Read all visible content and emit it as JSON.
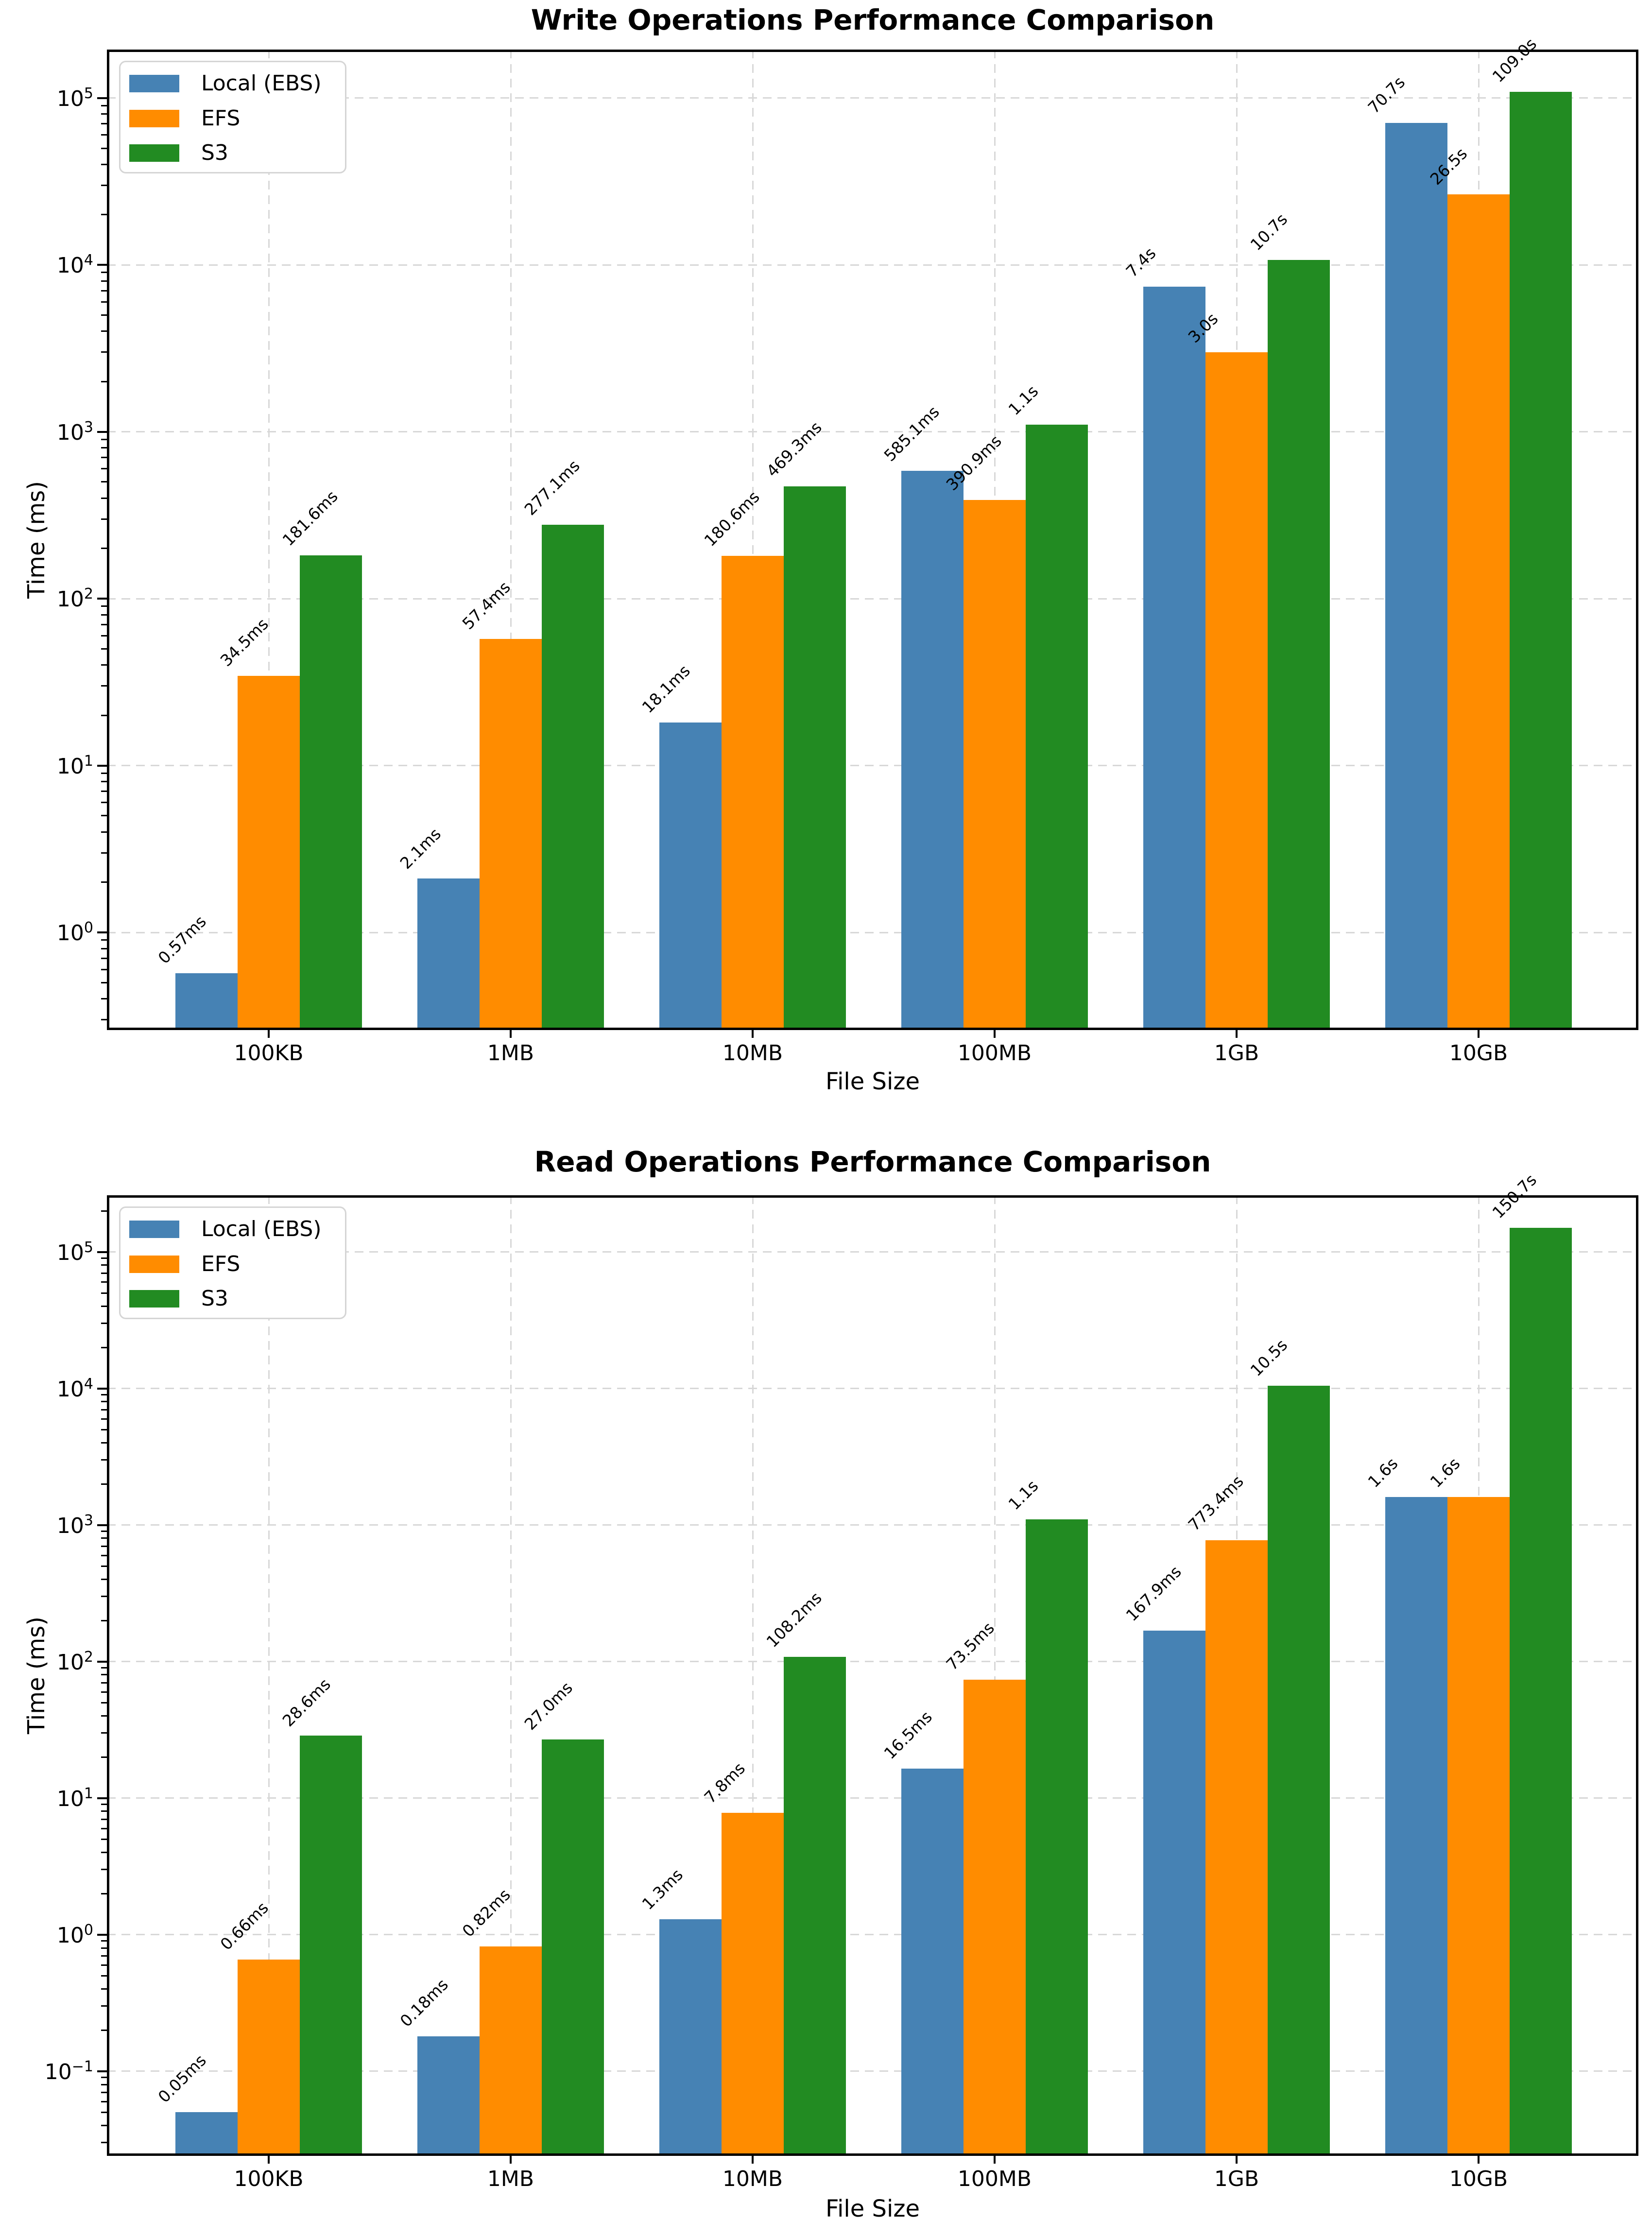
{
  "figure": {
    "background": "#ffffff",
    "text_color": "#000000",
    "grid_color": "#d8d8d8",
    "spine_color": "#000000"
  },
  "chart_data": [
    {
      "type": "bar",
      "title": "Write Operations Performance Comparison",
      "xlabel": "File Size",
      "ylabel": "Time (ms)",
      "categories": [
        "100KB",
        "1MB",
        "10MB",
        "100MB",
        "1GB",
        "10GB"
      ],
      "series": [
        {
          "name": "Local (EBS)",
          "color": "#4682B4",
          "values": [
            0.57,
            2.1,
            18.1,
            585.1,
            7400,
            70700
          ],
          "labels": [
            "0.57ms",
            "2.1ms",
            "18.1ms",
            "585.1ms",
            "7.4s",
            "70.7s"
          ]
        },
        {
          "name": "EFS",
          "color": "#FF8C00",
          "values": [
            34.5,
            57.4,
            180.6,
            390.9,
            3000,
            26500
          ],
          "labels": [
            "34.5ms",
            "57.4ms",
            "180.6ms",
            "390.9ms",
            "3.0s",
            "26.5s"
          ]
        },
        {
          "name": "S3",
          "color": "#228B22",
          "values": [
            181.6,
            277.1,
            469.3,
            1100,
            10700,
            109000
          ],
          "labels": [
            "181.6ms",
            "277.1ms",
            "469.3ms",
            "1.1s",
            "10.7s",
            "109.0s"
          ]
        }
      ],
      "yscale": "log",
      "ylim": [
        0.26,
        195000
      ],
      "ytick_exponents": [
        0,
        1,
        2,
        3,
        4,
        5
      ],
      "grid": true,
      "legend_position": "upper left"
    },
    {
      "type": "bar",
      "title": "Read Operations Performance Comparison",
      "xlabel": "File Size",
      "ylabel": "Time (ms)",
      "categories": [
        "100KB",
        "1MB",
        "10MB",
        "100MB",
        "1GB",
        "10GB"
      ],
      "series": [
        {
          "name": "Local (EBS)",
          "color": "#4682B4",
          "values": [
            0.05,
            0.18,
            1.3,
            16.5,
            167.9,
            1600
          ],
          "labels": [
            "0.05ms",
            "0.18ms",
            "1.3ms",
            "16.5ms",
            "167.9ms",
            "1.6s"
          ]
        },
        {
          "name": "EFS",
          "color": "#FF8C00",
          "values": [
            0.66,
            0.82,
            7.8,
            73.5,
            773.4,
            1600
          ],
          "labels": [
            "0.66ms",
            "0.82ms",
            "7.8ms",
            "73.5ms",
            "773.4ms",
            "1.6s"
          ]
        },
        {
          "name": "S3",
          "color": "#228B22",
          "values": [
            28.6,
            27.0,
            108.2,
            1100,
            10500,
            150700
          ],
          "labels": [
            "28.6ms",
            "27.0ms",
            "108.2ms",
            "1.1s",
            "10.5s",
            "150.7s"
          ]
        }
      ],
      "yscale": "log",
      "ylim": [
        0.024,
        260000
      ],
      "ytick_exponents": [
        -1,
        0,
        1,
        2,
        3,
        4,
        5
      ],
      "grid": true,
      "legend_position": "upper left"
    }
  ]
}
